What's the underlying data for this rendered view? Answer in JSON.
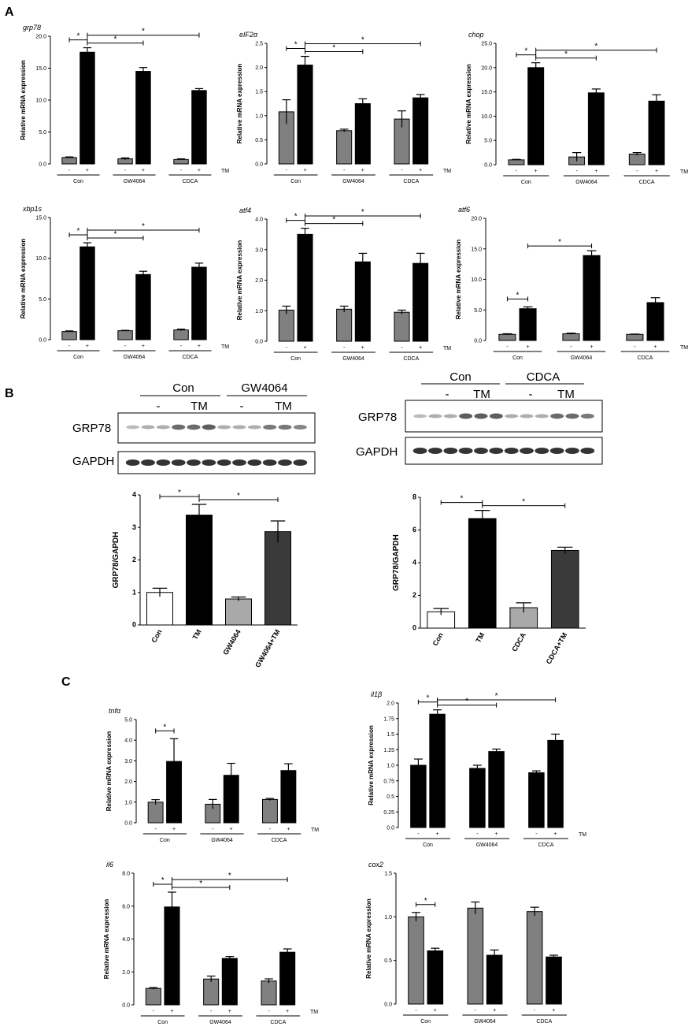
{
  "panel_labels": {
    "a": "A",
    "b": "B",
    "c": "C"
  },
  "colors": {
    "gray": "#808080",
    "black": "#000000",
    "light_gray": "#a9a9a9",
    "dark_gray": "#3a3a3a",
    "white": "#ffffff"
  },
  "blots": [
    {
      "group_labels": [
        "Con",
        "GW4064"
      ],
      "treatment_labels": [
        "-",
        "TM",
        "-",
        "TM"
      ],
      "band_labels": [
        "GRP78",
        "GAPDH"
      ]
    },
    {
      "group_labels": [
        "Con",
        "CDCA"
      ],
      "treatment_labels": [
        "-",
        "TM",
        "-",
        "TM"
      ],
      "band_labels": [
        "GRP78",
        "GAPDH"
      ]
    }
  ],
  "chart_data": [
    {
      "id": "A1",
      "type": "bar",
      "title": "grp78",
      "ylabel": "Relative mRNA expression",
      "ylim": [
        0,
        20
      ],
      "yticks": [
        "0.0",
        "5.0",
        "10.0",
        "15.0",
        "20.0"
      ],
      "treatment_label": "TM",
      "treatments": [
        "-",
        "+"
      ],
      "groups": [
        "Con",
        "GW4064",
        "CDCA"
      ],
      "values": [
        1.0,
        17.5,
        0.8,
        14.5,
        0.7,
        11.5
      ],
      "errors": [
        0.1,
        0.7,
        0.15,
        0.6,
        0.1,
        0.3
      ],
      "significance": [
        {
          "from": 0,
          "to": 1,
          "label": "*"
        },
        {
          "from": 1,
          "to": 3,
          "label": "*"
        },
        {
          "from": 1,
          "to": 5,
          "label": "*"
        }
      ]
    },
    {
      "id": "A2",
      "type": "bar",
      "title": "eIF2α",
      "ylabel": "Relative mRNA expression",
      "ylim": [
        0,
        2.5
      ],
      "yticks": [
        "0.0",
        "0.5",
        "1.0",
        "1.5",
        "2.0",
        "2.5"
      ],
      "treatment_label": "TM",
      "treatments": [
        "-",
        "+"
      ],
      "groups": [
        "Con",
        "GW4064",
        "CDCA"
      ],
      "values": [
        1.08,
        2.05,
        0.69,
        1.25,
        0.93,
        1.37
      ],
      "errors": [
        0.25,
        0.18,
        0.03,
        0.1,
        0.17,
        0.07
      ],
      "significance": [
        {
          "from": 0,
          "to": 1,
          "label": "*"
        },
        {
          "from": 1,
          "to": 3,
          "label": "*"
        },
        {
          "from": 1,
          "to": 5,
          "label": "*"
        }
      ]
    },
    {
      "id": "A3",
      "type": "bar",
      "title": "chop",
      "ylabel": "Relative mRNA expression",
      "ylim": [
        0,
        25
      ],
      "yticks": [
        "0.0",
        "5.0",
        "10.0",
        "15.0",
        "20.0",
        "25.0"
      ],
      "treatment_label": "TM",
      "treatments": [
        "-",
        "+"
      ],
      "groups": [
        "Con",
        "GW4064",
        "CDCA"
      ],
      "values": [
        1.0,
        20.0,
        1.6,
        14.8,
        2.2,
        13.1
      ],
      "errors": [
        0.1,
        1.0,
        0.9,
        0.8,
        0.3,
        1.3
      ],
      "significance": [
        {
          "from": 0,
          "to": 1,
          "label": "*"
        },
        {
          "from": 1,
          "to": 3,
          "label": "*"
        },
        {
          "from": 1,
          "to": 5,
          "label": "*"
        }
      ]
    },
    {
      "id": "A4",
      "type": "bar",
      "title": "xbp1s",
      "ylabel": "Relative mRNA expression",
      "ylim": [
        0,
        15
      ],
      "yticks": [
        "0.0",
        "5.0",
        "10.0",
        "15.0"
      ],
      "treatment_label": "TM",
      "treatments": [
        "-",
        "+"
      ],
      "groups": [
        "Con",
        "GW4064",
        "CDCA"
      ],
      "values": [
        1.0,
        11.4,
        1.1,
        8.0,
        1.2,
        8.9
      ],
      "errors": [
        0.08,
        0.5,
        0.05,
        0.4,
        0.1,
        0.5
      ],
      "significance": [
        {
          "from": 0,
          "to": 1,
          "label": "*"
        },
        {
          "from": 1,
          "to": 3,
          "label": "*"
        },
        {
          "from": 1,
          "to": 5,
          "label": "*"
        }
      ]
    },
    {
      "id": "A5",
      "type": "bar",
      "title": "atf4",
      "ylabel": "Relative mRNA expression",
      "ylim": [
        0,
        4
      ],
      "yticks": [
        "0.0",
        "1.0",
        "2.0",
        "3.0",
        "4.0"
      ],
      "treatment_label": "TM",
      "treatments": [
        "-",
        "+"
      ],
      "groups": [
        "Con",
        "GW4064",
        "CDCA"
      ],
      "values": [
        1.02,
        3.5,
        1.05,
        2.6,
        0.95,
        2.55
      ],
      "errors": [
        0.13,
        0.2,
        0.1,
        0.28,
        0.07,
        0.33
      ],
      "significance": [
        {
          "from": 0,
          "to": 1,
          "label": "*"
        },
        {
          "from": 1,
          "to": 3,
          "label": "*"
        },
        {
          "from": 1,
          "to": 5,
          "label": "*"
        }
      ]
    },
    {
      "id": "A6",
      "type": "bar",
      "title": "atf6",
      "ylabel": "Relative mRNA expression",
      "ylim": [
        0,
        20
      ],
      "yticks": [
        "0.0",
        "5.0",
        "10.0",
        "15.0",
        "20.0"
      ],
      "treatment_label": "TM",
      "treatments": [
        "-",
        "+"
      ],
      "groups": [
        "Con",
        "GW4064",
        "CDCA"
      ],
      "values": [
        1.0,
        5.2,
        1.1,
        13.9,
        1.0,
        6.2
      ],
      "errors": [
        0.1,
        0.3,
        0.1,
        0.8,
        0.05,
        0.8
      ],
      "significance": [
        {
          "from": 0,
          "to": 1,
          "label": "*"
        },
        {
          "from": 1,
          "to": 3,
          "label": "*"
        }
      ]
    },
    {
      "id": "B1",
      "type": "bar",
      "ylabel": "GRP78/GAPDH",
      "ylim": [
        0,
        4
      ],
      "yticks": [
        "0",
        "1",
        "2",
        "3",
        "4"
      ],
      "categories": [
        "Con",
        "TM",
        "GW4064",
        "GW4064+TM"
      ],
      "values": [
        1.0,
        3.38,
        0.8,
        2.87
      ],
      "errors": [
        0.13,
        0.33,
        0.06,
        0.33
      ],
      "significance": [
        {
          "from": 0,
          "to": 1,
          "label": "*"
        },
        {
          "from": 1,
          "to": 3,
          "label": "*"
        }
      ]
    },
    {
      "id": "B2",
      "type": "bar",
      "ylabel": "GRP78/GAPDH",
      "ylim": [
        0,
        8
      ],
      "yticks": [
        "0",
        "2",
        "4",
        "6",
        "8"
      ],
      "categories": [
        "Con",
        "TM",
        "CDCA",
        "CDCA+TM"
      ],
      "values": [
        1.0,
        6.7,
        1.25,
        4.75
      ],
      "errors": [
        0.2,
        0.5,
        0.3,
        0.2
      ],
      "significance": [
        {
          "from": 0,
          "to": 1,
          "label": "*"
        },
        {
          "from": 1,
          "to": 3,
          "label": "*"
        }
      ]
    },
    {
      "id": "C1",
      "type": "bar",
      "title": "tnfα",
      "ylabel": "Relative mRNA expression",
      "ylim": [
        0,
        5
      ],
      "yticks": [
        "0.0",
        "1.0",
        "2.0",
        "3.0",
        "4.0",
        "5.0"
      ],
      "treatment_label": "TM",
      "treatments": [
        "-",
        "+"
      ],
      "groups": [
        "Con",
        "GW4064",
        "CDCA"
      ],
      "values": [
        1.0,
        2.97,
        0.9,
        2.3,
        1.13,
        2.53
      ],
      "errors": [
        0.12,
        1.1,
        0.23,
        0.58,
        0.05,
        0.33
      ],
      "significance": [
        {
          "from": 0,
          "to": 1,
          "label": "*"
        }
      ]
    },
    {
      "id": "C2",
      "type": "bar",
      "title": "il1β",
      "ylabel": "Relative mRNA expression",
      "ylim": [
        0,
        2.0
      ],
      "yticks": [
        "0.0",
        "0.25",
        "0.5",
        "0.75",
        "1.0",
        "1.25",
        "1.5",
        "1.75",
        "2.0"
      ],
      "treatment_label": "TM",
      "treatments": [
        "-",
        "+"
      ],
      "groups": [
        "Con",
        "GW4064",
        "CDCA"
      ],
      "values": [
        1.0,
        1.82,
        0.95,
        1.22,
        0.88,
        1.4
      ],
      "errors": [
        0.1,
        0.07,
        0.05,
        0.04,
        0.03,
        0.1
      ],
      "significance": [
        {
          "from": 0,
          "to": 1,
          "label": "*"
        },
        {
          "from": 1,
          "to": 3,
          "label": "*"
        },
        {
          "from": 1,
          "to": 5,
          "label": "*"
        }
      ]
    },
    {
      "id": "C3",
      "type": "bar",
      "title": "il6",
      "ylabel": "Relative mRNA expression",
      "ylim": [
        0,
        8
      ],
      "yticks": [
        "0.0",
        "2.0",
        "4.0",
        "6.0",
        "8.0"
      ],
      "treatment_label": "TM",
      "treatments": [
        "-",
        "+"
      ],
      "groups": [
        "Con",
        "GW4064",
        "CDCA"
      ],
      "values": [
        1.0,
        5.95,
        1.57,
        2.82,
        1.45,
        3.2
      ],
      "errors": [
        0.05,
        0.9,
        0.18,
        0.12,
        0.13,
        0.2
      ],
      "significance": [
        {
          "from": 0,
          "to": 1,
          "label": "*"
        },
        {
          "from": 1,
          "to": 3,
          "label": "*"
        },
        {
          "from": 1,
          "to": 5,
          "label": "*"
        }
      ]
    },
    {
      "id": "C4",
      "type": "bar",
      "title": "cox2",
      "ylabel": "Relative mRNA expression",
      "ylim": [
        0,
        1.5
      ],
      "yticks": [
        "0.0",
        "0.5",
        "1.0",
        "1.5"
      ],
      "treatment_label": "",
      "treatments": [
        "-",
        "+"
      ],
      "groups": [
        "Con",
        "GW4064",
        "CDCA"
      ],
      "values": [
        1.0,
        0.61,
        1.1,
        0.56,
        1.06,
        0.54
      ],
      "errors": [
        0.05,
        0.03,
        0.07,
        0.06,
        0.05,
        0.02
      ],
      "significance": [
        {
          "from": 0,
          "to": 1,
          "label": "*"
        }
      ]
    }
  ]
}
